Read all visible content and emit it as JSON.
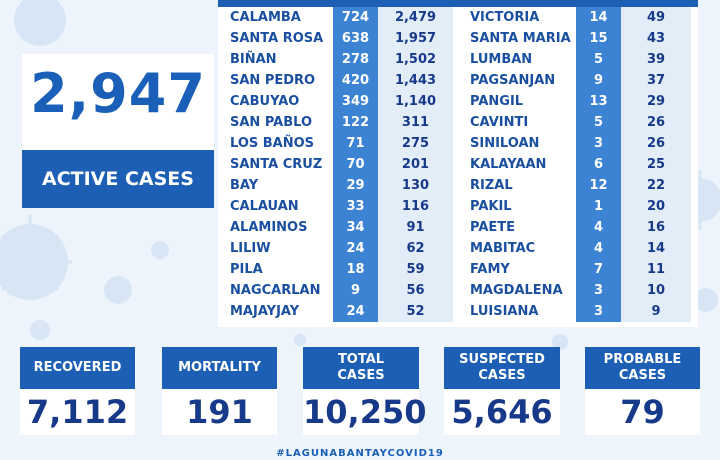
{
  "active": {
    "number": "2,947",
    "label": "ACTIVE CASES"
  },
  "left_rows": [
    [
      "CALAMBA",
      "724",
      "2,479"
    ],
    [
      "SANTA ROSA",
      "638",
      "1,957"
    ],
    [
      "BIÑAN",
      "278",
      "1,502"
    ],
    [
      "SAN PEDRO",
      "420",
      "1,443"
    ],
    [
      "CABUYAO",
      "349",
      "1,140"
    ],
    [
      "SAN PABLO",
      "122",
      "311"
    ],
    [
      "LOS BAÑOS",
      "71",
      "275"
    ],
    [
      "SANTA CRUZ",
      "70",
      "201"
    ],
    [
      "BAY",
      "29",
      "130"
    ],
    [
      "CALAUAN",
      "33",
      "116"
    ],
    [
      "ALAMINOS",
      "34",
      "91"
    ],
    [
      "LILIW",
      "24",
      "62"
    ],
    [
      "PILA",
      "18",
      "59"
    ],
    [
      "NAGCARLAN",
      "9",
      "56"
    ],
    [
      "MAJAYJAY",
      "24",
      "52"
    ]
  ],
  "right_rows": [
    [
      "VICTORIA",
      "14",
      "49"
    ],
    [
      "SANTA MARIA",
      "15",
      "43"
    ],
    [
      "LUMBAN",
      "5",
      "39"
    ],
    [
      "PAGSANJAN",
      "9",
      "37"
    ],
    [
      "PANGIL",
      "13",
      "29"
    ],
    [
      "CAVINTI",
      "5",
      "26"
    ],
    [
      "SINILOAN",
      "3",
      "26"
    ],
    [
      "KALAYAAN",
      "6",
      "25"
    ],
    [
      "RIZAL",
      "12",
      "22"
    ],
    [
      "PAKIL",
      "1",
      "20"
    ],
    [
      "PAETE",
      "4",
      "16"
    ],
    [
      "MABITAC",
      "4",
      "14"
    ],
    [
      "FAMY",
      "7",
      "11"
    ],
    [
      "MAGDALENA",
      "3",
      "10"
    ],
    [
      "LUISIANA",
      "3",
      "9"
    ]
  ],
  "stats": [
    {
      "label": "RECOVERED",
      "value": "7,112"
    },
    {
      "label": "MORTALITY",
      "value": "191"
    },
    {
      "label": "TOTAL\nCASES",
      "value": "10,250"
    },
    {
      "label": "SUSPECTED\nCASES",
      "value": "5,646"
    },
    {
      "label": "PROBABLE\nCASES",
      "value": "79"
    }
  ],
  "hashtag": "#LAGUNABANTAYCOVID19",
  "colors": {
    "primary": "#1c5fb5",
    "accent": "#3d83d4",
    "light": "#e3edf8",
    "dark_text": "#17398a"
  }
}
